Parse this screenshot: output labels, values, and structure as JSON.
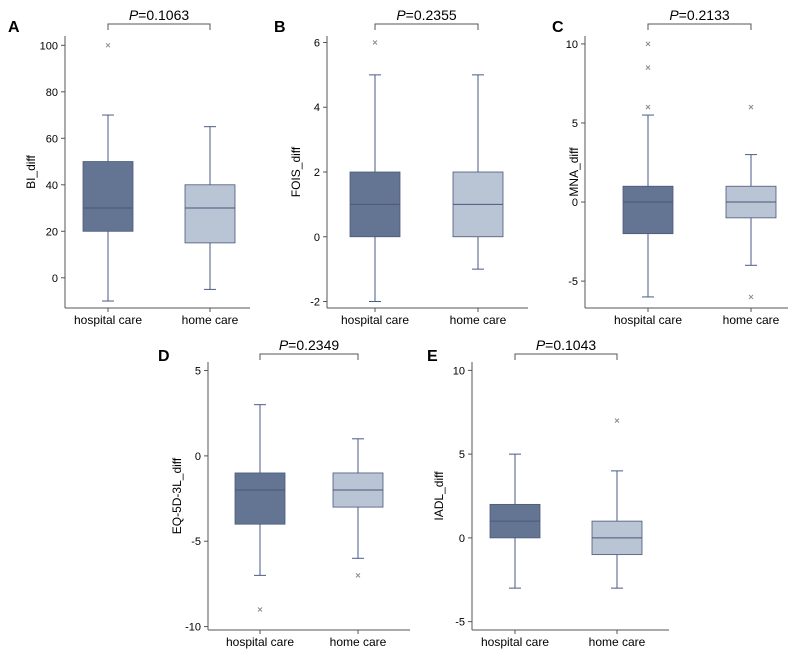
{
  "colors": {
    "hospital_fill": "#647593",
    "home_fill": "#b9c4d5",
    "box_stroke": "#4a587a",
    "whisker": "#4a5a8a",
    "axis": "#555555",
    "outlier": "#8a8a8a",
    "bracket": "#555555"
  },
  "chart_data": [
    {
      "panel": "A",
      "type": "boxplot",
      "ylabel": "BI_diff",
      "ylim": [
        -13,
        104
      ],
      "yticks": [
        0,
        20,
        40,
        60,
        80,
        100
      ],
      "p_label": "P",
      "p_value": "=0.1063",
      "categories": [
        "hospital care",
        "home care"
      ],
      "boxes": [
        {
          "min": -10,
          "q1": 20,
          "median": 30,
          "q3": 50,
          "max": 70,
          "outliers": [
            100
          ]
        },
        {
          "min": -5,
          "q1": 15,
          "median": 30,
          "q3": 40,
          "max": 65,
          "outliers": []
        }
      ]
    },
    {
      "panel": "B",
      "type": "boxplot",
      "ylabel": "FOIS_diff",
      "ylim": [
        -2.2,
        6.2
      ],
      "yticks": [
        -2,
        0,
        2,
        4,
        6
      ],
      "p_label": "P",
      "p_value": "=0.2355",
      "categories": [
        "hospital care",
        "home care"
      ],
      "boxes": [
        {
          "min": -2,
          "q1": 0,
          "median": 1,
          "q3": 2,
          "max": 5,
          "outliers": [
            6
          ]
        },
        {
          "min": -1,
          "q1": 0,
          "median": 1,
          "q3": 2,
          "max": 5,
          "outliers": []
        }
      ]
    },
    {
      "panel": "C",
      "type": "boxplot",
      "ylabel": "MNA_diff",
      "ylim": [
        -6.7,
        10.5
      ],
      "yticks": [
        -5,
        0,
        5,
        10
      ],
      "p_label": "P",
      "p_value": "=0.2133",
      "categories": [
        "hospital care",
        "home care"
      ],
      "boxes": [
        {
          "min": -6,
          "q1": -2,
          "median": 0,
          "q3": 1,
          "max": 5.5,
          "outliers": [
            6,
            8.5,
            10
          ]
        },
        {
          "min": -4,
          "q1": -1,
          "median": 0,
          "q3": 1,
          "max": 3,
          "outliers": [
            6,
            -6
          ]
        }
      ]
    },
    {
      "panel": "D",
      "type": "boxplot",
      "ylabel": "EQ-5D-3L_diff",
      "ylim": [
        -10.2,
        5.5
      ],
      "yticks": [
        -10,
        -5,
        0,
        5
      ],
      "p_label": "P",
      "p_value": "=0.2349",
      "categories": [
        "hospital care",
        "home care"
      ],
      "boxes": [
        {
          "min": -7,
          "q1": -4,
          "median": -2,
          "q3": -1,
          "max": 3,
          "outliers": [
            -9
          ]
        },
        {
          "min": -6,
          "q1": -3,
          "median": -2,
          "q3": -1,
          "max": 1,
          "outliers": [
            -7
          ]
        }
      ]
    },
    {
      "panel": "E",
      "type": "boxplot",
      "ylabel": "IADL_diff",
      "ylim": [
        -5.5,
        10.5
      ],
      "yticks": [
        -5,
        0,
        5,
        10
      ],
      "p_label": "P",
      "p_value": "=0.1043",
      "categories": [
        "hospital care",
        "home care"
      ],
      "boxes": [
        {
          "min": -3,
          "q1": 0,
          "median": 1,
          "q3": 2,
          "max": 5,
          "outliers": []
        },
        {
          "min": -3,
          "q1": -1,
          "median": 0,
          "q3": 1,
          "max": 4,
          "outliers": [
            7
          ]
        }
      ]
    }
  ]
}
